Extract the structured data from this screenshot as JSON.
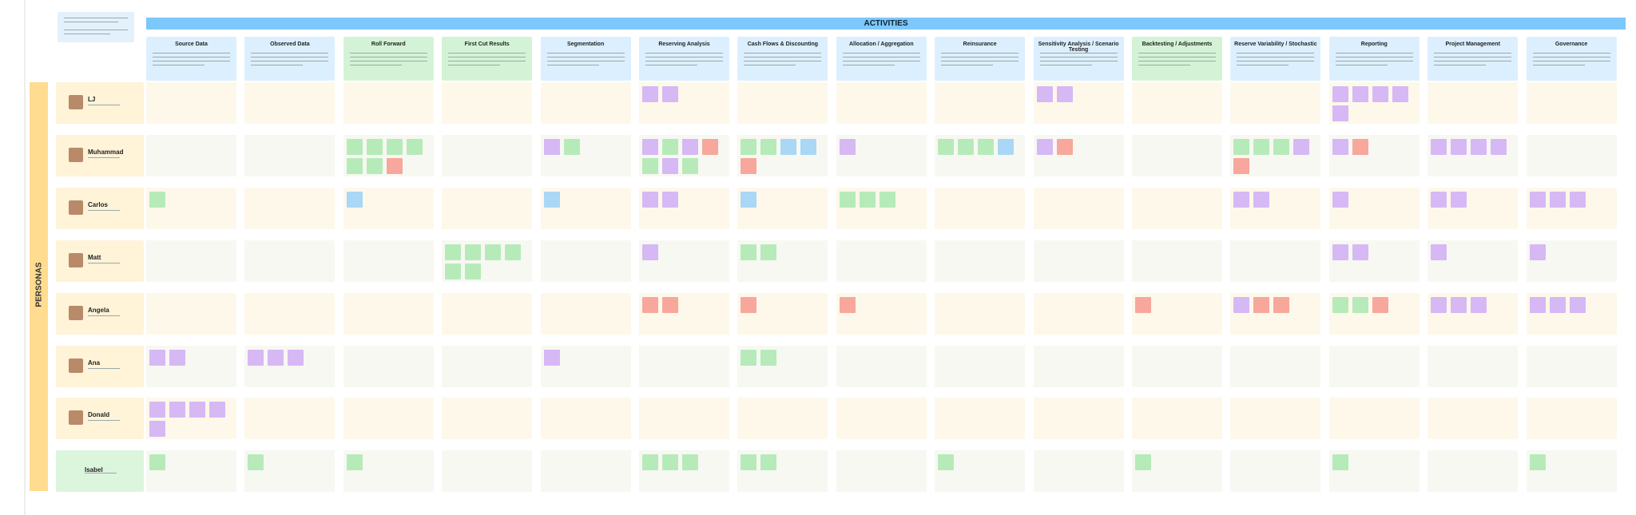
{
  "activities_title": "ACTIVITIES",
  "personas_title": "PERSONAS",
  "activities": [
    "Source Data",
    "Observed Data",
    "Roll Forward",
    "First Cut Results",
    "Segmentation",
    "Reserving Analysis",
    "Cash Flows & Discounting",
    "Allocation / Aggregation",
    "Reinsurance",
    "Sensitivity Analysis / Scenario Testing",
    "Backtesting / Adjustments",
    "Reserve Variability / Stochastic",
    "Reporting",
    "Project Management",
    "Governance"
  ],
  "personas": [
    "LJ",
    "Muhammad",
    "Carlos",
    "Matt",
    "Angela",
    "Ana",
    "Donald",
    "Isabel"
  ]
}
